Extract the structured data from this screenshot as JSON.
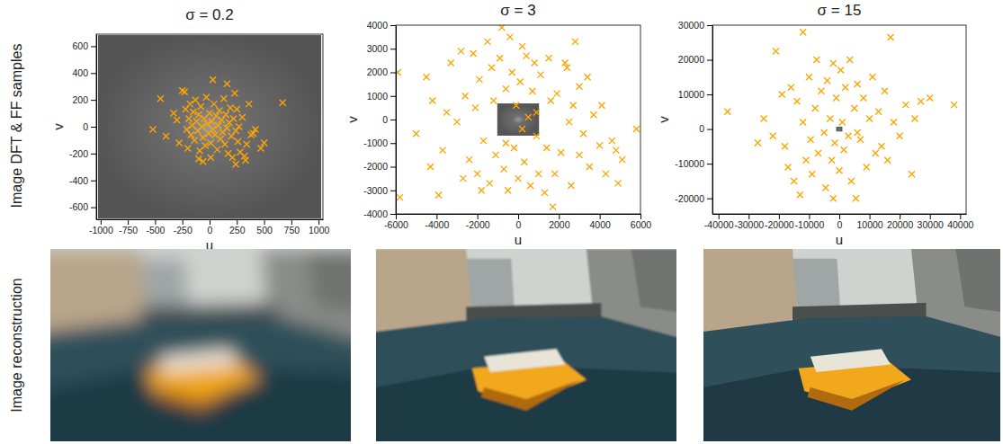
{
  "row_labels": [
    "Image DFT & FF samples",
    "Image reconstruction"
  ],
  "chart_data": [
    {
      "type": "scatter",
      "title": "σ = 0.2",
      "x_label": "u",
      "y_label": "v",
      "marker": "x",
      "color": "#ffa500",
      "image_extent": {
        "u": [
          -1024,
          1024
        ],
        "v": [
          -683,
          683
        ]
      },
      "xlim": [
        -1040,
        1040
      ],
      "ylim": [
        -690,
        690
      ],
      "xticks": [
        -1000,
        -750,
        -500,
        -250,
        0,
        250,
        500,
        750,
        1000
      ],
      "yticks": [
        -600,
        -400,
        -200,
        0,
        200,
        400,
        600
      ],
      "x": [
        -520,
        -450,
        -400,
        -330,
        -300,
        -280,
        -250,
        -230,
        -220,
        -210,
        -200,
        -190,
        -180,
        -170,
        -160,
        -150,
        -140,
        -130,
        -120,
        -110,
        -100,
        -90,
        -80,
        -70,
        -60,
        -50,
        -40,
        -30,
        -20,
        -10,
        0,
        10,
        20,
        30,
        40,
        50,
        60,
        70,
        80,
        90,
        100,
        110,
        120,
        130,
        140,
        150,
        160,
        170,
        180,
        190,
        200,
        210,
        220,
        230,
        240,
        250,
        260,
        270,
        280,
        300,
        320,
        340,
        360,
        380,
        400,
        420,
        470,
        500,
        670,
        -60,
        10,
        -100,
        330,
        240,
        160,
        30
      ],
      "values": [
        -20,
        210,
        -70,
        100,
        50,
        -120,
        270,
        260,
        130,
        -20,
        -160,
        60,
        170,
        -60,
        10,
        110,
        -100,
        200,
        40,
        -30,
        90,
        -180,
        150,
        0,
        -80,
        60,
        -140,
        220,
        20,
        -50,
        100,
        -120,
        40,
        -20,
        170,
        -60,
        80,
        -170,
        10,
        120,
        -90,
        50,
        -40,
        210,
        -130,
        90,
        -10,
        -200,
        30,
        140,
        -70,
        -230,
        60,
        250,
        -30,
        130,
        -110,
        0,
        -190,
        70,
        -220,
        -130,
        170,
        -60,
        -50,
        -20,
        -160,
        -120,
        180,
        -260,
        -230,
        -240,
        -250,
        -280,
        320,
        350
      ]
    },
    {
      "type": "scatter",
      "title": "σ = 3",
      "x_label": "u",
      "y_label": "v",
      "marker": "x",
      "color": "#ffa500",
      "image_extent": {
        "u": [
          -1024,
          1024
        ],
        "v": [
          -683,
          683
        ]
      },
      "xlim": [
        -6000,
        6000
      ],
      "ylim": [
        -4000,
        4000
      ],
      "xticks": [
        -6000,
        -4000,
        -2000,
        0,
        2000,
        4000,
        6000
      ],
      "yticks": [
        -4000,
        -3000,
        -2000,
        -1000,
        0,
        1000,
        2000,
        3000,
        4000
      ],
      "x": [
        -5900,
        -5800,
        -4500,
        -4300,
        -4200,
        -3900,
        -3700,
        -3500,
        -3300,
        -3000,
        -2800,
        -2700,
        -2600,
        -2400,
        -2200,
        -2100,
        -2000,
        -1900,
        -1700,
        -1500,
        -1400,
        -1300,
        -1200,
        -1100,
        -900,
        -800,
        -700,
        -600,
        -500,
        -400,
        -300,
        -200,
        -100,
        0,
        100,
        200,
        300,
        400,
        500,
        600,
        700,
        800,
        900,
        1000,
        1100,
        1300,
        1400,
        1500,
        1600,
        1700,
        1800,
        1900,
        2100,
        2300,
        2400,
        2500,
        2600,
        2700,
        2800,
        3000,
        3200,
        3400,
        3500,
        3700,
        4000,
        4100,
        4300,
        4600,
        4800,
        4900,
        5100,
        5800,
        -5000,
        -1800,
        -600,
        900,
        3000,
        200
      ],
      "values": [
        2000,
        -3300,
        1800,
        -2000,
        800,
        -3200,
        -1300,
        300,
        2400,
        -100,
        2900,
        -2500,
        1000,
        -1700,
        2800,
        500,
        -2300,
        1700,
        -900,
        3300,
        -2700,
        2200,
        800,
        -1500,
        2600,
        3900,
        -2100,
        1300,
        -3000,
        3500,
        2000,
        -1200,
        600,
        -2500,
        1600,
        3100,
        -1800,
        2700,
        100,
        -2800,
        1200,
        2400,
        -700,
        -2300,
        1900,
        -3100,
        -1200,
        2600,
        800,
        -3700,
        -2300,
        1100,
        -1400,
        2400,
        2200,
        -100,
        -2800,
        600,
        3300,
        -1500,
        -600,
        1800,
        -2000,
        200,
        -1100,
        600,
        -2300,
        -900,
        -1300,
        -2700,
        -1700,
        -400,
        -600,
        -3000,
        -1000,
        300,
        1400,
        -400
      ]
    },
    {
      "type": "scatter",
      "title": "σ = 15",
      "x_label": "u",
      "y_label": "v",
      "marker": "x",
      "color": "#ffa500",
      "image_extent": {
        "u": [
          -1024,
          1024
        ],
        "v": [
          -683,
          683
        ]
      },
      "xlim": [
        -42000,
        42000
      ],
      "ylim": [
        -24500,
        30000
      ],
      "xticks": [
        -40000,
        -30000,
        -20000,
        -10000,
        0,
        10000,
        20000,
        30000,
        40000
      ],
      "yticks": [
        -20000,
        -10000,
        0,
        10000,
        20000,
        30000
      ],
      "x": [
        -37000,
        -27000,
        -25000,
        -22000,
        -21000,
        -19000,
        -18000,
        -17000,
        -16000,
        -15000,
        -14000,
        -13000,
        -12000,
        -12000,
        -11000,
        -10000,
        -9500,
        -9000,
        -8000,
        -7500,
        -7000,
        -6000,
        -5000,
        -4500,
        -4000,
        -3000,
        -2500,
        -2000,
        -1500,
        -1000,
        0,
        500,
        1000,
        1500,
        2000,
        3000,
        3500,
        4000,
        5000,
        5500,
        6000,
        7000,
        8000,
        9000,
        10000,
        11000,
        12000,
        13000,
        14000,
        15000,
        16000,
        17000,
        18000,
        20000,
        22000,
        24000,
        25000,
        27000,
        30000,
        38000,
        -2000,
        6000
      ],
      "values": [
        5000,
        -4000,
        3000,
        -2000,
        22500,
        10000,
        -5000,
        -11000,
        12000,
        -15000,
        8000,
        -19000,
        28000,
        2000,
        -9000,
        15000,
        -3000,
        -13000,
        6000,
        20000,
        -7000,
        11000,
        -1000,
        -17000,
        14000,
        3000,
        -9000,
        19000,
        -4000,
        9000,
        -12000,
        17000,
        2000,
        -6000,
        12000,
        -2000,
        20000,
        -15000,
        6000,
        -20000,
        13000,
        -3000,
        9000,
        -11000,
        3000,
        15000,
        -7000,
        5000,
        -5000,
        11000,
        -9000,
        26500,
        2000,
        -2000,
        7000,
        -13000,
        3000,
        8000,
        9000,
        7000,
        -20000,
        -1000
      ]
    }
  ]
}
